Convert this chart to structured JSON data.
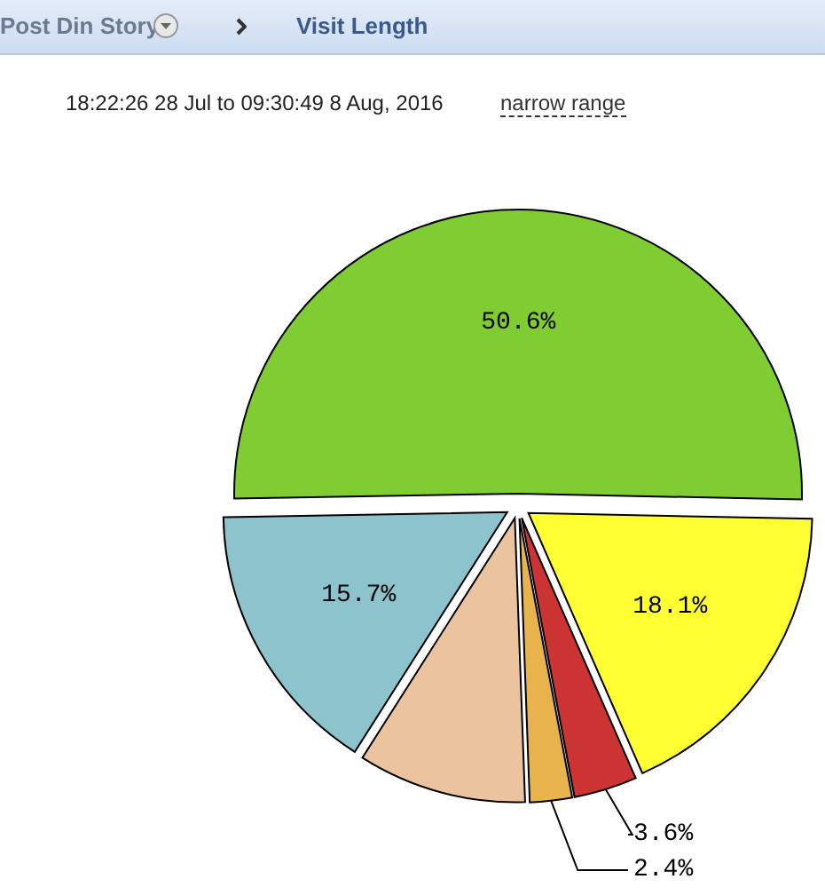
{
  "chart_data": {
    "type": "pie",
    "title": "Visit Length",
    "subtitle": "18:22:26 28 Jul to 09:30:49 8 Aug, 2016",
    "annotations": [
      "Post Din Story",
      "narrow range"
    ],
    "categories": [
      null,
      null,
      null,
      null,
      null,
      null
    ],
    "values": [
      50.6,
      18.1,
      3.6,
      2.4,
      9.6,
      15.7
    ],
    "colors": [
      "#80cc33",
      "#ffff33",
      "#cc3333",
      "#e8b34d",
      "#ebc49f",
      "#8cc3cc"
    ],
    "value_labels": [
      "50.6%",
      "18.1%",
      "3.6%",
      "2.4%",
      null,
      "15.7%"
    ]
  }
}
